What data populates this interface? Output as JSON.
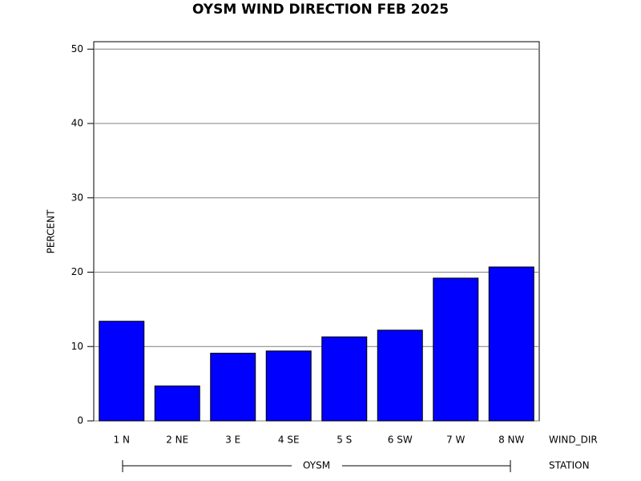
{
  "chart_data": {
    "type": "bar",
    "title": "OYSM WIND DIRECTION FEB 2025",
    "y_label": "PERCENT",
    "x_label": "WIND_DIR",
    "group_label": "STATION",
    "group": "OYSM",
    "categories": [
      "1 N",
      "2 NE",
      "3 E",
      "4 SE",
      "5 S",
      "6 SW",
      "7 W",
      "8 NW"
    ],
    "values": [
      13.4,
      4.7,
      9.1,
      9.4,
      11.3,
      12.2,
      19.2,
      20.7
    ],
    "color": "#0000ff",
    "ylim": [
      0,
      51
    ],
    "yticks": [
      0,
      10,
      20,
      30,
      40,
      50
    ],
    "grid": true
  }
}
